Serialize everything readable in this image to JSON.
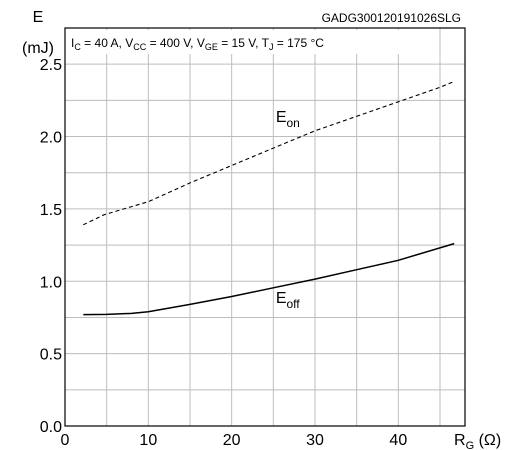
{
  "document_id": "GADG300120191026SLG",
  "conditions": {
    "ic": {
      "sym": "I",
      "sub": "C",
      "val": " = 40 A, "
    },
    "vcc": {
      "sym": "V",
      "sub": "CC",
      "val": " = 400 V, "
    },
    "vge": {
      "sym": "V",
      "sub": "GE",
      "val": " = 15 V, "
    },
    "tj": {
      "sym": "T",
      "sub": "J",
      "val": " = 175 °C"
    }
  },
  "chart_data": {
    "type": "line",
    "y_axis": {
      "symbol": "E",
      "unit": "(mJ)"
    },
    "x_axis": {
      "symbol": "R",
      "sub": "G",
      "unit": " (Ω)"
    },
    "xlim": [
      0,
      48
    ],
    "ylim": [
      0,
      2.75
    ],
    "x_ticks": [
      0,
      10,
      20,
      30,
      40
    ],
    "y_ticks": [
      0.0,
      0.5,
      1.0,
      1.5,
      2.0,
      2.5
    ],
    "x_tick_labels": [
      "0",
      "10",
      "20",
      "30",
      "40"
    ],
    "y_tick_labels": [
      "0.0",
      "0.5",
      "1.0",
      "1.5",
      "2.0",
      "2.5"
    ],
    "x_grid_step": 5,
    "y_grid_step": 0.25,
    "grid": true,
    "series": [
      {
        "name_main": "E",
        "name_sub": "on",
        "style": "dashed",
        "label_at": [
          25.3,
          2.1
        ],
        "x": [
          2.2,
          4.7,
          10,
          15,
          20,
          25,
          30,
          35,
          40,
          45,
          46.7
        ],
        "y": [
          1.39,
          1.46,
          1.55,
          1.68,
          1.8,
          1.92,
          2.04,
          2.14,
          2.24,
          2.34,
          2.38
        ]
      },
      {
        "name_main": "E",
        "name_sub": "off",
        "style": "solid",
        "label_at": [
          25.3,
          0.85
        ],
        "x": [
          2.2,
          5,
          8,
          10,
          15,
          20,
          25,
          30,
          35,
          40,
          46.7
        ],
        "y": [
          0.77,
          0.771,
          0.778,
          0.79,
          0.84,
          0.895,
          0.955,
          1.015,
          1.08,
          1.145,
          1.26
        ]
      }
    ]
  }
}
